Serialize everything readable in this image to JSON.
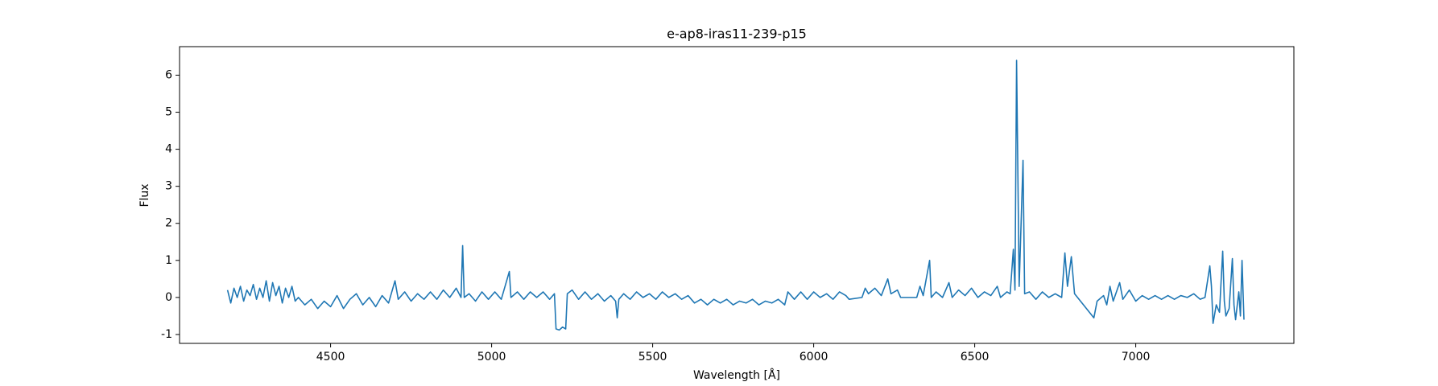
{
  "chart_data": {
    "type": "line",
    "title": "e-ap8-iras11-239-p15",
    "x_label": "Wavelength [Å]",
    "y_label": "Flux",
    "xlim": [
      4031,
      7491
    ],
    "ylim": [
      -1.24,
      6.77
    ],
    "xticks": [
      4500,
      5000,
      5500,
      6000,
      6500,
      7000
    ],
    "yticks": [
      -1,
      0,
      1,
      2,
      3,
      4,
      5,
      6
    ],
    "grid": false,
    "x": [
      4180,
      4190,
      4200,
      4210,
      4220,
      4230,
      4240,
      4250,
      4260,
      4270,
      4280,
      4290,
      4300,
      4310,
      4320,
      4330,
      4340,
      4350,
      4360,
      4370,
      4380,
      4390,
      4400,
      4420,
      4440,
      4460,
      4480,
      4500,
      4520,
      4540,
      4560,
      4580,
      4600,
      4620,
      4640,
      4660,
      4680,
      4700,
      4710,
      4730,
      4750,
      4770,
      4790,
      4810,
      4830,
      4850,
      4870,
      4890,
      4905,
      4910,
      4915,
      4930,
      4950,
      4970,
      4990,
      5010,
      5030,
      5055,
      5060,
      5080,
      5100,
      5120,
      5140,
      5160,
      5180,
      5195,
      5200,
      5210,
      5220,
      5230,
      5235,
      5250,
      5270,
      5290,
      5310,
      5330,
      5350,
      5370,
      5385,
      5390,
      5395,
      5410,
      5430,
      5450,
      5470,
      5490,
      5510,
      5530,
      5550,
      5570,
      5590,
      5610,
      5630,
      5650,
      5670,
      5690,
      5710,
      5730,
      5750,
      5770,
      5790,
      5810,
      5830,
      5850,
      5870,
      5890,
      5910,
      5920,
      5940,
      5960,
      5980,
      6000,
      6020,
      6040,
      6060,
      6080,
      6100,
      6110,
      6150,
      6160,
      6170,
      6190,
      6210,
      6230,
      6240,
      6260,
      6270,
      6320,
      6330,
      6340,
      6360,
      6365,
      6380,
      6400,
      6420,
      6430,
      6450,
      6470,
      6490,
      6510,
      6530,
      6550,
      6570,
      6580,
      6600,
      6610,
      6620,
      6625,
      6630,
      6638,
      6650,
      6655,
      6670,
      6690,
      6710,
      6730,
      6750,
      6770,
      6780,
      6788,
      6800,
      6810,
      6870,
      6880,
      6900,
      6910,
      6920,
      6930,
      6950,
      6960,
      6980,
      7000,
      7020,
      7040,
      7060,
      7080,
      7100,
      7120,
      7140,
      7160,
      7180,
      7200,
      7215,
      7230,
      7235,
      7240,
      7250,
      7260,
      7270,
      7275,
      7280,
      7290,
      7300,
      7305,
      7310,
      7320,
      7325,
      7330,
      7336
    ],
    "series": [
      {
        "color": "#1f77b4",
        "values": [
          0.2,
          -0.15,
          0.25,
          0.0,
          0.3,
          -0.1,
          0.2,
          0.05,
          0.35,
          -0.05,
          0.25,
          0.0,
          0.45,
          -0.1,
          0.4,
          0.05,
          0.3,
          -0.15,
          0.25,
          0.0,
          0.3,
          -0.1,
          0.0,
          -0.2,
          -0.05,
          -0.3,
          -0.1,
          -0.25,
          0.05,
          -0.3,
          -0.05,
          0.1,
          -0.2,
          0.0,
          -0.25,
          0.05,
          -0.15,
          0.45,
          -0.05,
          0.15,
          -0.1,
          0.1,
          -0.05,
          0.15,
          -0.05,
          0.2,
          0.0,
          0.25,
          0.0,
          1.4,
          0.0,
          0.1,
          -0.1,
          0.15,
          -0.05,
          0.15,
          -0.05,
          0.7,
          0.0,
          0.15,
          -0.05,
          0.15,
          0.0,
          0.15,
          -0.05,
          0.1,
          -0.85,
          -0.88,
          -0.8,
          -0.85,
          0.1,
          0.2,
          -0.05,
          0.15,
          -0.05,
          0.1,
          -0.1,
          0.05,
          -0.1,
          -0.55,
          -0.05,
          0.1,
          -0.05,
          0.15,
          0.0,
          0.1,
          -0.05,
          0.15,
          0.0,
          0.1,
          -0.05,
          0.05,
          -0.15,
          -0.05,
          -0.2,
          -0.05,
          -0.15,
          -0.05,
          -0.2,
          -0.1,
          -0.15,
          -0.05,
          -0.2,
          -0.1,
          -0.15,
          -0.05,
          -0.2,
          0.15,
          -0.05,
          0.15,
          -0.05,
          0.15,
          0.0,
          0.1,
          -0.05,
          0.15,
          0.05,
          -0.05,
          0.0,
          0.25,
          0.1,
          0.25,
          0.05,
          0.5,
          0.1,
          0.2,
          0.0,
          0.0,
          0.3,
          0.05,
          1.0,
          0.0,
          0.15,
          0.0,
          0.4,
          0.0,
          0.2,
          0.05,
          0.25,
          0.0,
          0.15,
          0.05,
          0.3,
          0.0,
          0.15,
          0.1,
          1.3,
          0.2,
          6.4,
          0.3,
          3.7,
          0.1,
          0.15,
          -0.05,
          0.15,
          0.0,
          0.1,
          0.0,
          1.2,
          0.3,
          1.1,
          0.1,
          -0.55,
          -0.1,
          0.05,
          -0.2,
          0.3,
          -0.1,
          0.4,
          -0.05,
          0.2,
          -0.1,
          0.05,
          -0.05,
          0.05,
          -0.05,
          0.05,
          -0.05,
          0.05,
          0.0,
          0.1,
          -0.05,
          0.0,
          0.85,
          0.3,
          -0.7,
          -0.2,
          -0.4,
          1.25,
          -0.1,
          -0.5,
          -0.3,
          1.05,
          -0.2,
          -0.6,
          0.15,
          -0.5,
          1.0,
          -0.6
        ]
      }
    ]
  }
}
